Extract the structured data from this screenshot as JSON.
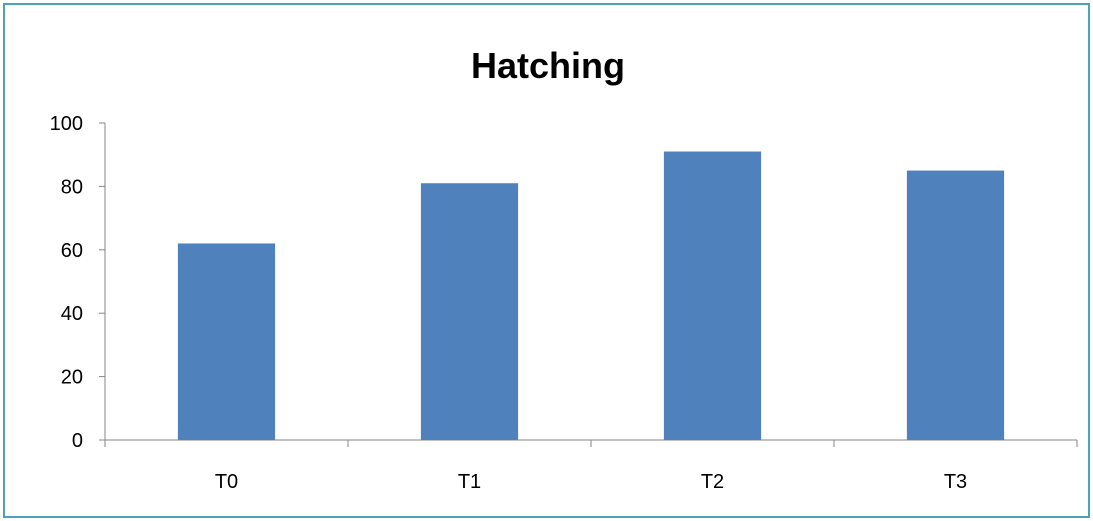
{
  "chart_data": {
    "type": "bar",
    "title": "Hatching",
    "categories": [
      "T0",
      "T1",
      "T2",
      "T3"
    ],
    "values": [
      62,
      81,
      91,
      85
    ],
    "xlabel": "",
    "ylabel": "",
    "ylim": [
      0,
      100
    ],
    "yticks": [
      0,
      20,
      40,
      60,
      80,
      100
    ],
    "grid": false,
    "legend": "none",
    "bar_color": "#4f81bd",
    "border_color": "#4aa3b8"
  }
}
